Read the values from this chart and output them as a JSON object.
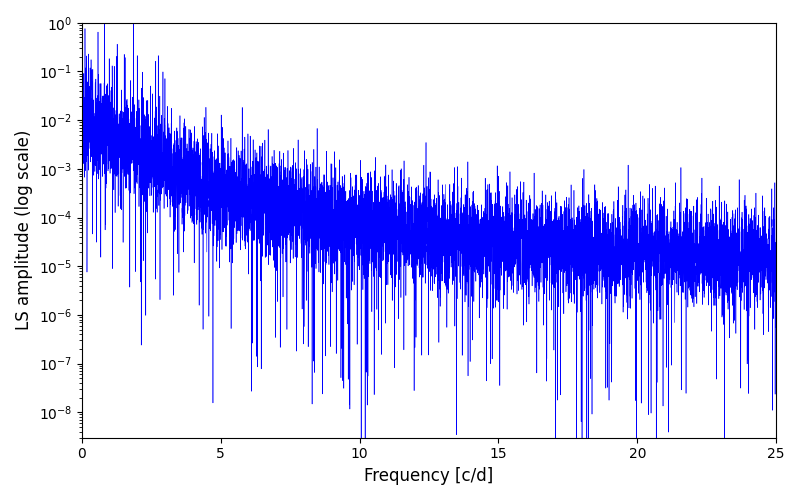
{
  "xlabel": "Frequency [c/d]",
  "ylabel": "LS amplitude (log scale)",
  "line_color": "#0000ff",
  "xlim": [
    0,
    25
  ],
  "ylim": [
    3e-09,
    1.0
  ],
  "xmax": 25,
  "n_points": 8000,
  "seed": 7,
  "background_color": "#ffffff",
  "figsize": [
    8.0,
    5.0
  ],
  "dpi": 100,
  "xticks": [
    0,
    5,
    10,
    15,
    20,
    25
  ],
  "linewidth": 0.4
}
